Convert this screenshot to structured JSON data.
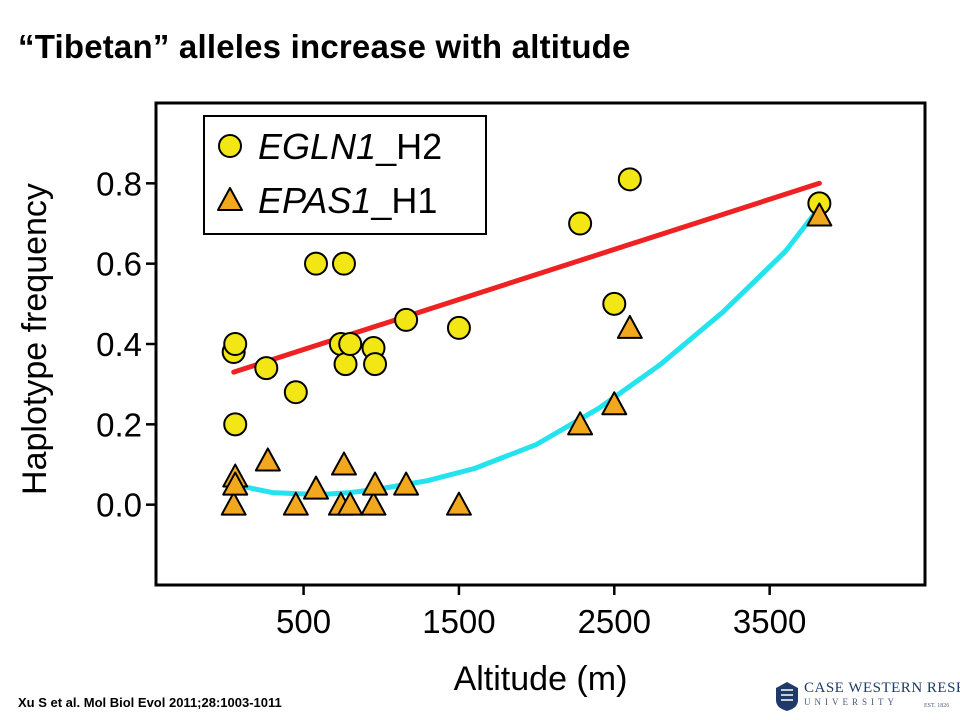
{
  "slide": {
    "title": "“Tibetan” alleles increase with altitude",
    "citation": "Xu S et al. Mol Biol Evol 2011;28:1003-1011"
  },
  "logo": {
    "line1": "CASE WESTERN RESERVE",
    "line2": "UNIVERSITY",
    "line3": "EST. 1826"
  },
  "chart_data": {
    "type": "scatter",
    "xlabel": "Altitude (m)",
    "ylabel": "Haplotype frequency",
    "xlim": [
      -450,
      4500
    ],
    "ylim": [
      -0.2,
      1.0
    ],
    "xticks": [
      500,
      1500,
      2500,
      3500
    ],
    "yticks": [
      0.0,
      0.2,
      0.4,
      0.6,
      0.8
    ],
    "grid": false,
    "legend_position": "top-left",
    "series": [
      {
        "name_italic": "EGLN1",
        "name_suffix": "_H2",
        "marker": "circle",
        "color": "#f2e614",
        "points": [
          [
            50,
            0.38
          ],
          [
            60,
            0.4
          ],
          [
            60,
            0.2
          ],
          [
            260,
            0.34
          ],
          [
            450,
            0.28
          ],
          [
            580,
            0.6
          ],
          [
            760,
            0.6
          ],
          [
            740,
            0.4
          ],
          [
            770,
            0.35
          ],
          [
            800,
            0.4
          ],
          [
            950,
            0.39
          ],
          [
            960,
            0.35
          ],
          [
            1160,
            0.46
          ],
          [
            1500,
            0.44
          ],
          [
            2280,
            0.7
          ],
          [
            2500,
            0.5
          ],
          [
            2600,
            0.81
          ],
          [
            3820,
            0.75
          ]
        ]
      },
      {
        "name_italic": "EPAS1",
        "name_suffix": "_H1",
        "marker": "triangle",
        "color": "#f2a81e",
        "points": [
          [
            50,
            0.0
          ],
          [
            60,
            0.07
          ],
          [
            60,
            0.05
          ],
          [
            270,
            0.11
          ],
          [
            450,
            0.0
          ],
          [
            580,
            0.04
          ],
          [
            740,
            0.0
          ],
          [
            760,
            0.1
          ],
          [
            800,
            0.0
          ],
          [
            950,
            0.0
          ],
          [
            960,
            0.05
          ],
          [
            1160,
            0.05
          ],
          [
            1500,
            0.0
          ],
          [
            2280,
            0.2
          ],
          [
            2500,
            0.25
          ],
          [
            2600,
            0.44
          ],
          [
            3820,
            0.72
          ]
        ]
      }
    ],
    "fits": [
      {
        "kind": "linear",
        "color": "#ee2222",
        "x": [
          50,
          3820
        ],
        "y": [
          0.33,
          0.8
        ]
      },
      {
        "kind": "quadratic",
        "color": "#22e3ee",
        "x": [
          50,
          300,
          600,
          800,
          1000,
          1300,
          1600,
          2000,
          2400,
          2800,
          3200,
          3600,
          3820
        ],
        "y": [
          0.05,
          0.03,
          0.025,
          0.03,
          0.04,
          0.06,
          0.09,
          0.15,
          0.24,
          0.35,
          0.48,
          0.63,
          0.74
        ]
      }
    ]
  }
}
